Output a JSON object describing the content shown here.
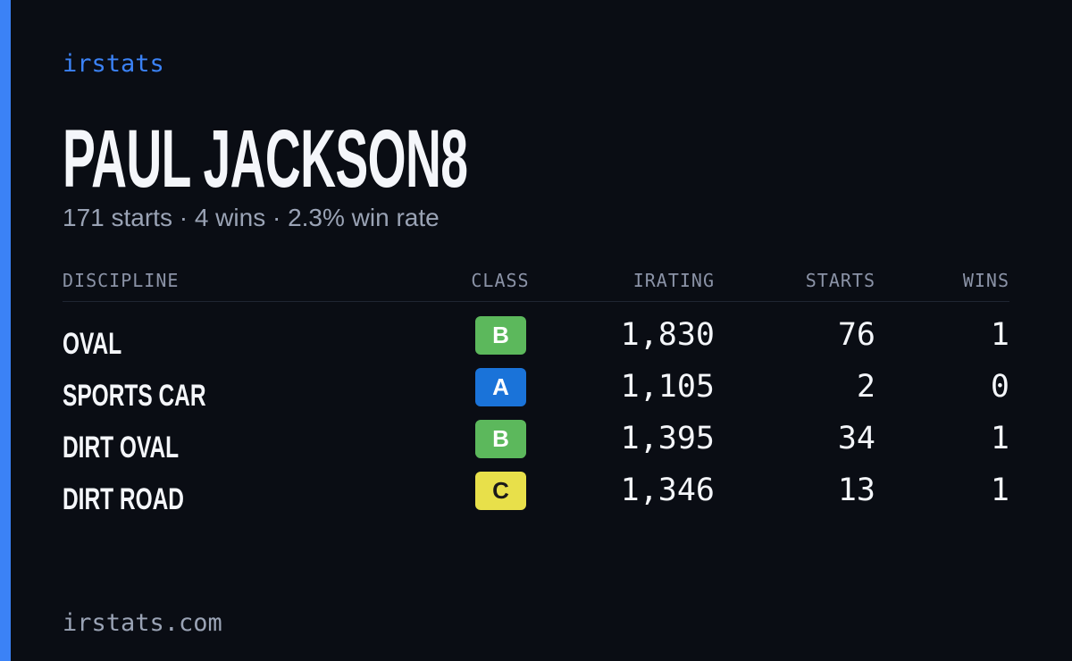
{
  "brand": "irstats",
  "title": "PAUL JACKSON8",
  "summary": "171 starts · 4 wins · 2.3% win rate",
  "table": {
    "headers": [
      "DISCIPLINE",
      "CLASS",
      "IRATING",
      "STARTS",
      "WINS"
    ],
    "rows": [
      [
        "OVAL",
        "B",
        "1,830",
        "76",
        "1"
      ],
      [
        "SPORTS CAR",
        "A",
        "1,105",
        "2",
        "0"
      ],
      [
        "DIRT OVAL",
        "B",
        "1,395",
        "34",
        "1"
      ],
      [
        "DIRT ROAD",
        "C",
        "1,346",
        "13",
        "1"
      ]
    ]
  },
  "footer": "irstats.com"
}
